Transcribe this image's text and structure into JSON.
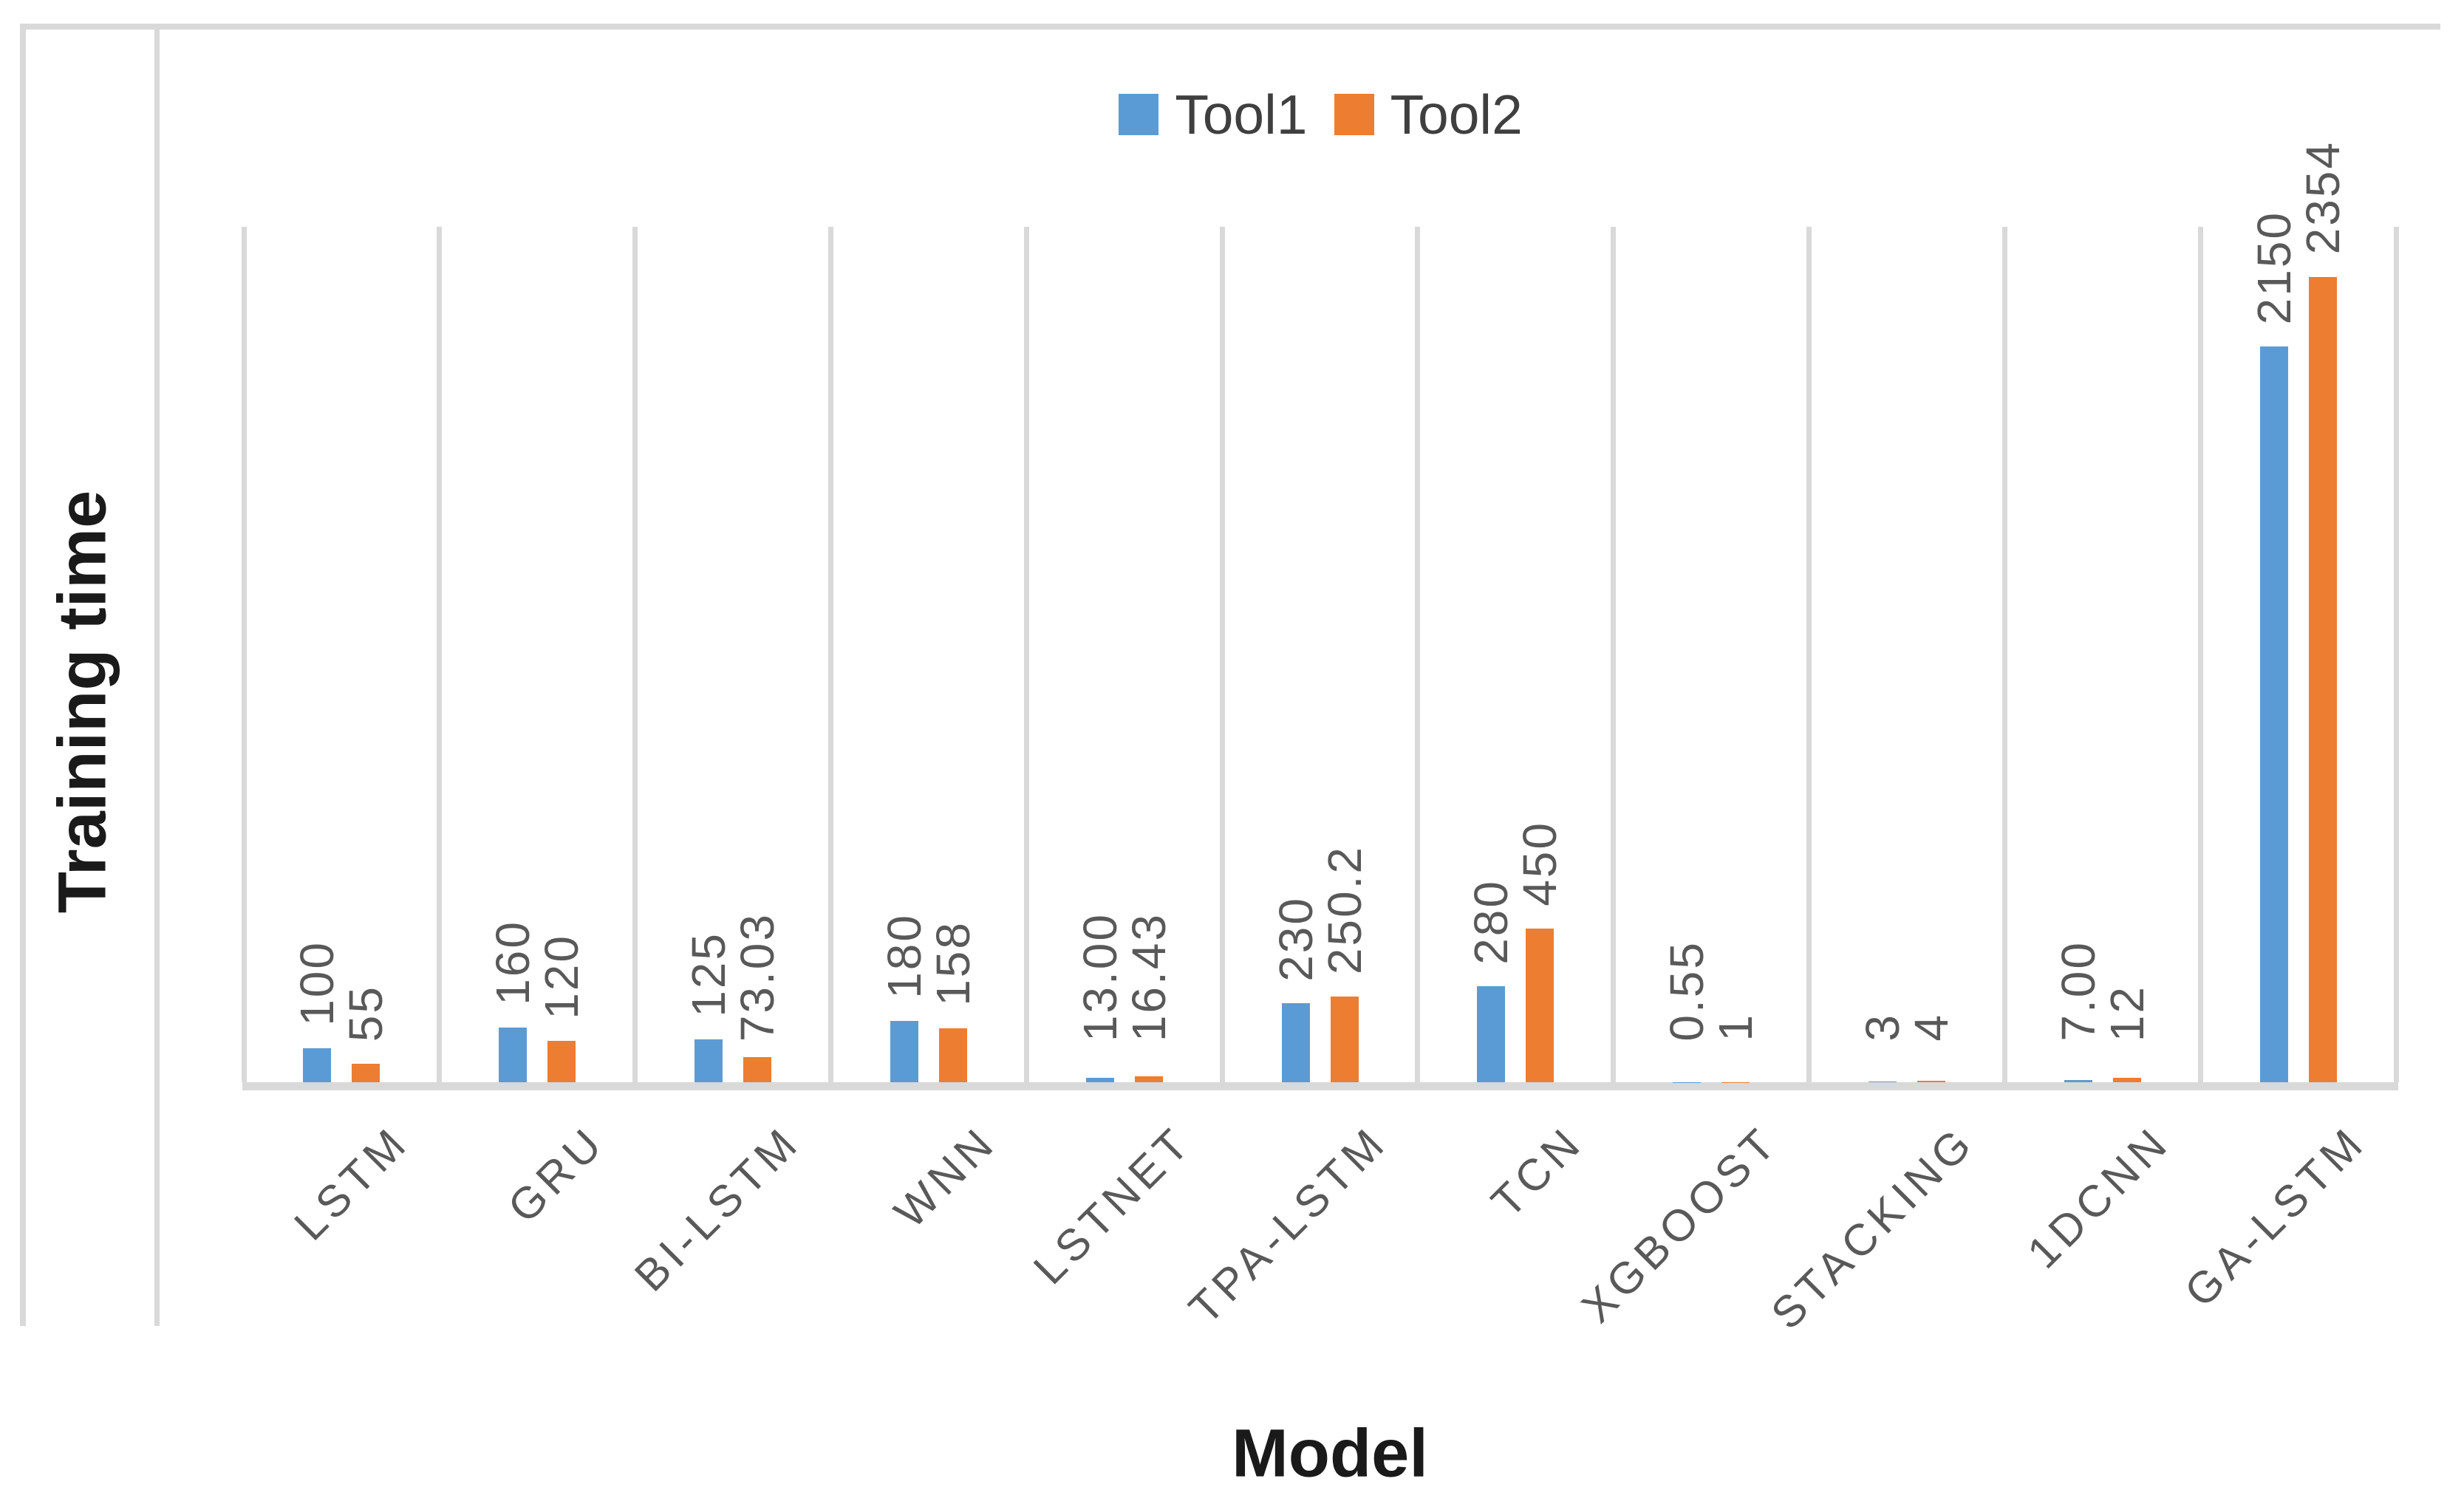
{
  "figure": {
    "kind": "grouped-bar-chart-screenshot"
  },
  "legend": {
    "position": "top-center",
    "items": [
      {
        "label": "Tool1",
        "color": "#5B9BD5"
      },
      {
        "label": "Tool2",
        "color": "#ED7D31"
      }
    ]
  },
  "axes": {
    "y_title": "Training time",
    "x_title": "Model",
    "y_tick_labels_visible": false
  },
  "chart_data": {
    "type": "bar",
    "title": "",
    "xlabel": "Model",
    "ylabel": "Training time",
    "categories": [
      "LSTM",
      "GRU",
      "BI-LSTM",
      "WNN",
      "LSTNET",
      "TPA-LSTM",
      "TCN",
      "XGBOOST",
      "STACKING",
      "1DCNN",
      "GA-LSTM"
    ],
    "series": [
      {
        "name": "Tool1",
        "color": "#5B9BD5",
        "values": [
          100,
          160,
          125,
          180,
          13,
          230,
          280,
          0.55,
          3,
          7,
          2150
        ],
        "labels": [
          "100",
          "160",
          "125",
          "180",
          "13.00",
          "230",
          "280",
          "0.55",
          "3",
          "7.00",
          "2150"
        ]
      },
      {
        "name": "Tool2",
        "color": "#ED7D31",
        "values": [
          55,
          120,
          73.03,
          158,
          16.43,
          250.2,
          450,
          1,
          4,
          12,
          2354
        ],
        "labels": [
          "55",
          "120",
          "73.03",
          "158",
          "16.43",
          "250.2",
          "450",
          "1",
          "4",
          "12",
          "2354"
        ]
      }
    ],
    "ylim": [
      0,
      2500
    ],
    "grid": "vertical-category-separator-lines",
    "legend_position": "top-center",
    "bar_label_rotation_deg": -90,
    "category_label_rotation_deg": -45
  },
  "colors": {
    "bar_blue": "#5B9BD5",
    "bar_orange": "#ED7D31",
    "grid_line": "#D9D9D9",
    "value_label_text": "#595959",
    "category_label_text": "#595959",
    "legend_text": "#3F3F3F",
    "axis_title_text": "#1A1A1A",
    "background": "#FFFFFF"
  }
}
